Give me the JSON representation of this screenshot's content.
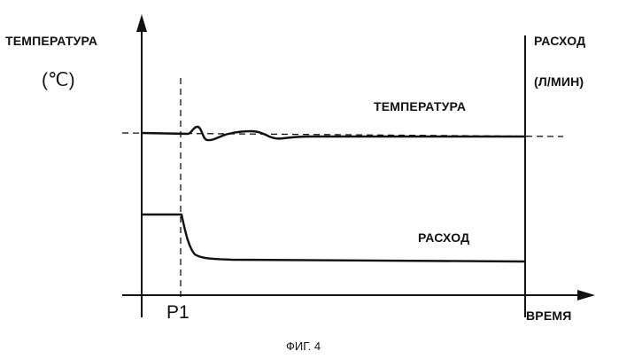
{
  "figure": {
    "caption": "ФИГ. 4",
    "left_axis_label": "ТЕМПЕРАТУРА",
    "left_axis_unit": "(℃)",
    "right_axis_label": "РАСХОД",
    "right_axis_unit": "(Л/МИН)",
    "x_axis_label": "ВРЕМЯ",
    "marker_label": "P1",
    "temperature_curve_label": "ТЕМПЕРАТУРА",
    "flow_curve_label": "РАСХОД"
  },
  "colors": {
    "ink": "#111111",
    "background": "#ffffff"
  }
}
